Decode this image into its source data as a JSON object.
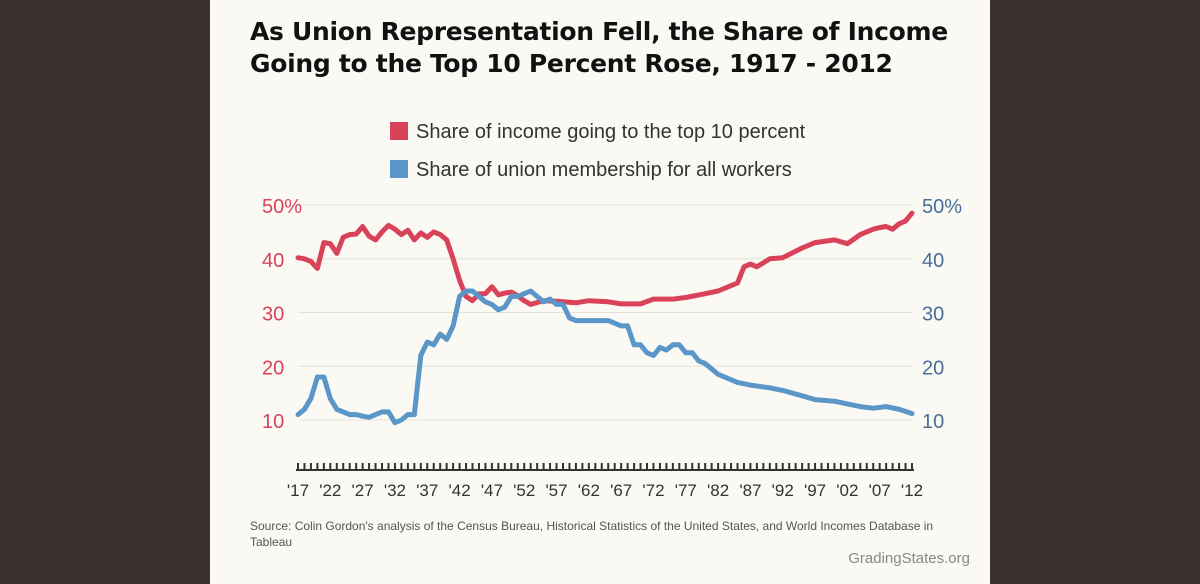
{
  "title_line1": "As Union Representation Fell, the Share of Income",
  "title_line2": "Going to the Top 10 Percent Rose, 1917 - 2012",
  "colors": {
    "income": "#d9435a",
    "union": "#5b96c9",
    "axis": "#333333"
  },
  "source": "Source: Colin Gordon's analysis of the Census Bureau, Historical Statistics of the United States, and World Incomes Database in Tableau",
  "credit": "GradingStates.org",
  "chart_data": {
    "type": "line",
    "title": "As Union Representation Fell, the Share of Income Going to the Top 10 Percent Rose, 1917 - 2012",
    "xlim": [
      1917,
      2012
    ],
    "ylim": [
      10,
      50
    ],
    "left_ticks": [
      "50%",
      "40",
      "30",
      "20",
      "10"
    ],
    "right_ticks": [
      "50%",
      "40",
      "30",
      "20",
      "10"
    ],
    "tick_values": [
      50,
      40,
      30,
      20,
      10
    ],
    "x_labels": [
      "'17",
      "'22",
      "'27",
      "'32",
      "'37",
      "'42",
      "'47",
      "'52",
      "'57",
      "'62",
      "'67",
      "'72",
      "'77",
      "'82",
      "'87",
      "'92",
      "'97",
      "'02",
      "'07",
      "'12"
    ],
    "x_label_years": [
      1917,
      1922,
      1927,
      1932,
      1937,
      1942,
      1947,
      1952,
      1957,
      1962,
      1967,
      1972,
      1977,
      1982,
      1987,
      1992,
      1997,
      2002,
      2007,
      2012
    ],
    "series": [
      {
        "name": "Share of income going to the top 10 percent",
        "x": [
          1917,
          1918,
          1919,
          1920,
          1921,
          1922,
          1923,
          1924,
          1925,
          1926,
          1927,
          1928,
          1929,
          1930,
          1931,
          1932,
          1933,
          1934,
          1935,
          1936,
          1937,
          1938,
          1939,
          1940,
          1941,
          1942,
          1943,
          1944,
          1945,
          1946,
          1947,
          1948,
          1949,
          1950,
          1951,
          1952,
          1953,
          1955,
          1957,
          1960,
          1962,
          1965,
          1967,
          1970,
          1972,
          1975,
          1977,
          1980,
          1982,
          1985,
          1986,
          1987,
          1988,
          1990,
          1992,
          1995,
          1997,
          2000,
          2002,
          2004,
          2006,
          2007,
          2008,
          2009,
          2010,
          2011,
          2012
        ],
        "values": [
          40.2,
          40,
          39.5,
          38.2,
          43,
          42.8,
          41,
          44,
          44.5,
          44.6,
          46,
          44.2,
          43.5,
          45,
          46.2,
          45.5,
          44.5,
          45.3,
          43.5,
          44.8,
          44,
          45,
          44.5,
          43.5,
          40,
          36,
          33,
          32.2,
          33.5,
          33.5,
          34.8,
          33.3,
          33.6,
          33.8,
          33.1,
          32.2,
          31.5,
          32.2,
          32.1,
          31.8,
          32.2,
          32,
          31.6,
          31.6,
          32.5,
          32.5,
          32.8,
          33.5,
          34,
          35.5,
          38.5,
          39,
          38.5,
          40,
          40.2,
          42,
          43,
          43.5,
          42.8,
          44.5,
          45.5,
          45.8,
          46,
          45.5,
          46.5,
          47,
          48.5
        ]
      },
      {
        "name": "Share of union membership for all workers",
        "x": [
          1917,
          1918,
          1919,
          1920,
          1921,
          1922,
          1923,
          1924,
          1925,
          1926,
          1927,
          1928,
          1929,
          1930,
          1931,
          1932,
          1933,
          1934,
          1935,
          1936,
          1937,
          1938,
          1939,
          1940,
          1941,
          1942,
          1943,
          1944,
          1945,
          1946,
          1947,
          1948,
          1949,
          1950,
          1951,
          1952,
          1953,
          1954,
          1955,
          1956,
          1957,
          1958,
          1959,
          1960,
          1962,
          1965,
          1967,
          1968,
          1969,
          1970,
          1971,
          1972,
          1973,
          1974,
          1975,
          1976,
          1977,
          1978,
          1979,
          1980,
          1982,
          1985,
          1987,
          1990,
          1992,
          1995,
          1997,
          2000,
          2002,
          2004,
          2006,
          2008,
          2010,
          2012
        ],
        "values": [
          11,
          12,
          14,
          18,
          18,
          14,
          12,
          11.5,
          11,
          11,
          10.7,
          10.5,
          11,
          11.5,
          11.5,
          9.5,
          10,
          11,
          11,
          22,
          24.5,
          24,
          26,
          25,
          27.5,
          33,
          34,
          34,
          33,
          32,
          31.5,
          30.5,
          31,
          33,
          33,
          33.5,
          34,
          33,
          32,
          32.5,
          31.5,
          31.5,
          29,
          28.5,
          28.5,
          28.5,
          27.5,
          27.5,
          24,
          24,
          22.5,
          22,
          23.5,
          23,
          24,
          24,
          22.5,
          22.5,
          21,
          20.5,
          18.5,
          17,
          16.5,
          16,
          15.5,
          14.5,
          13.8,
          13.5,
          13,
          12.5,
          12.2,
          12.5,
          12,
          11.2
        ]
      }
    ]
  }
}
